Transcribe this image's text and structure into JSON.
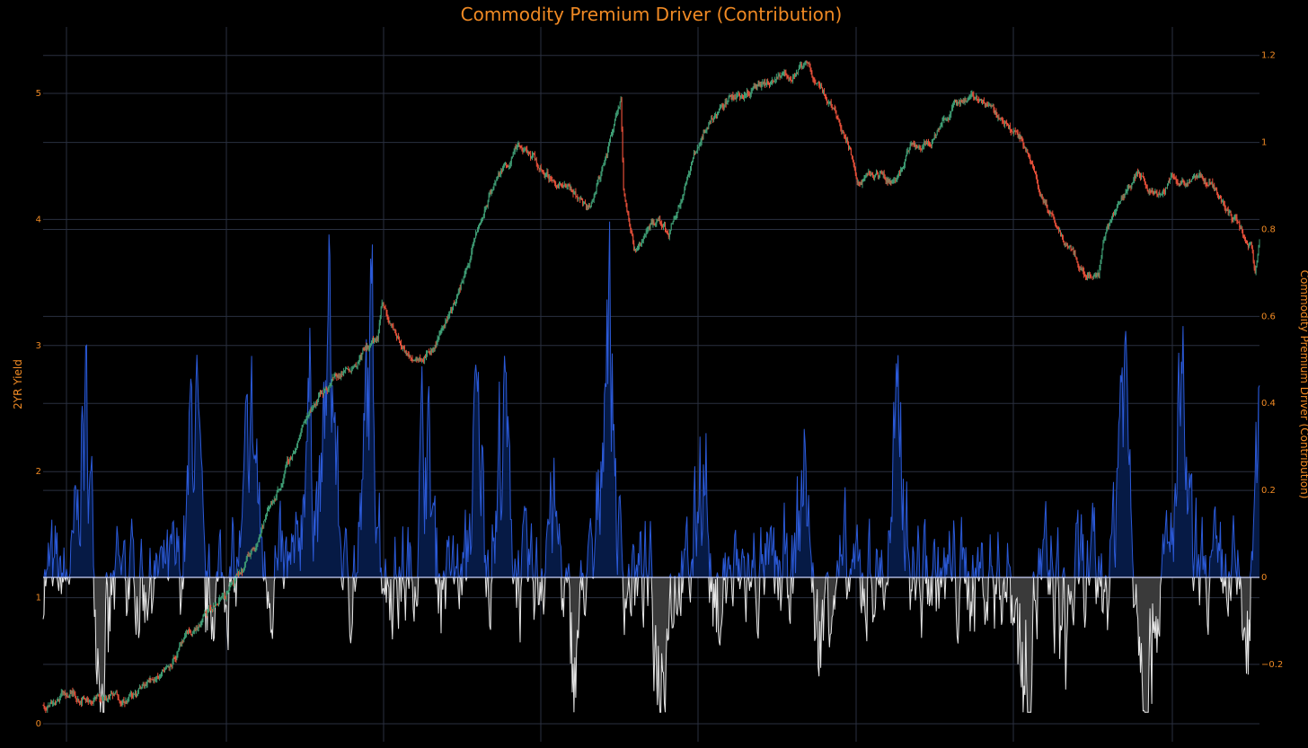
{
  "colors": {
    "background": "#000000",
    "grid": "#2a3040",
    "text": "#f08a24",
    "candle_up": "#3f9e75",
    "candle_down": "#e8503a",
    "positive_line": "#2b59d6",
    "positive_fill": "#061a45",
    "negative_line": "#e6e6e6",
    "negative_fill": "#3a3a3a",
    "zero_line": "#d0d8ff"
  },
  "chart_data": {
    "type": "candlestick+area",
    "title": "Commodity Premium Driver (Contribution)",
    "y_left": {
      "label": "2YR Yield",
      "range": [
        -0.05,
        5.55
      ],
      "ticks": [
        "0",
        "1",
        "2",
        "3",
        "4",
        "5"
      ]
    },
    "y_right": {
      "label": "Commodity Premium Driver (Contribution)",
      "range": [
        -0.335,
        1.26
      ],
      "ticks": [
        "−0.2",
        "0",
        "0.2",
        "0.4",
        "0.6",
        "0.8",
        "1",
        "1.2"
      ]
    },
    "grid": true,
    "legend": "none",
    "price_series_keypoints": [
      [
        0,
        0.15
      ],
      [
        25,
        0.24
      ],
      [
        60,
        0.2
      ],
      [
        105,
        0.22
      ],
      [
        140,
        0.45
      ],
      [
        170,
        0.7
      ],
      [
        200,
        0.95
      ],
      [
        230,
        1.2
      ],
      [
        260,
        1.7
      ],
      [
        285,
        2.1
      ],
      [
        310,
        2.55
      ],
      [
        335,
        2.75
      ],
      [
        355,
        2.85
      ],
      [
        375,
        3.0
      ],
      [
        385,
        3.05
      ],
      [
        390,
        3.3
      ],
      [
        420,
        2.9
      ],
      [
        450,
        3.0
      ],
      [
        480,
        3.45
      ],
      [
        500,
        3.9
      ],
      [
        520,
        4.3
      ],
      [
        545,
        4.55
      ],
      [
        560,
        4.5
      ],
      [
        580,
        4.35
      ],
      [
        600,
        4.25
      ],
      [
        630,
        4.1
      ],
      [
        650,
        4.55
      ],
      [
        665,
        5.0
      ],
      [
        668,
        4.3
      ],
      [
        680,
        3.75
      ],
      [
        700,
        4.0
      ],
      [
        720,
        3.9
      ],
      [
        740,
        4.3
      ],
      [
        760,
        4.7
      ],
      [
        780,
        4.9
      ],
      [
        800,
        5.0
      ],
      [
        830,
        5.05
      ],
      [
        860,
        5.15
      ],
      [
        880,
        5.2
      ],
      [
        900,
        5.0
      ],
      [
        920,
        4.75
      ],
      [
        940,
        4.3
      ],
      [
        960,
        4.35
      ],
      [
        980,
        4.3
      ],
      [
        1000,
        4.6
      ],
      [
        1020,
        4.65
      ],
      [
        1050,
        4.9
      ],
      [
        1070,
        5.0
      ],
      [
        1090,
        4.9
      ],
      [
        1110,
        4.75
      ],
      [
        1130,
        4.6
      ],
      [
        1150,
        4.2
      ],
      [
        1165,
        3.95
      ],
      [
        1185,
        3.75
      ],
      [
        1200,
        3.55
      ],
      [
        1215,
        3.6
      ],
      [
        1225,
        3.95
      ],
      [
        1240,
        4.15
      ],
      [
        1260,
        4.35
      ],
      [
        1280,
        4.2
      ],
      [
        1300,
        4.35
      ],
      [
        1320,
        4.3
      ],
      [
        1345,
        4.3
      ],
      [
        1360,
        4.1
      ],
      [
        1375,
        3.95
      ],
      [
        1390,
        3.8
      ],
      [
        1395,
        3.55
      ],
      [
        1400,
        3.8
      ]
    ],
    "contribution_peaks": [
      [
        48,
        0.48
      ],
      [
        175,
        0.56
      ],
      [
        240,
        0.46
      ],
      [
        305,
        0.57
      ],
      [
        330,
        0.7
      ],
      [
        377,
        0.67
      ],
      [
        440,
        0.44
      ],
      [
        500,
        0.44
      ],
      [
        530,
        0.47
      ],
      [
        585,
        0.2
      ],
      [
        650,
        0.85
      ],
      [
        760,
        0.45
      ],
      [
        878,
        0.36
      ],
      [
        985,
        0.43
      ],
      [
        1243,
        0.65
      ],
      [
        1310,
        0.47
      ],
      [
        1398,
        0.46
      ],
      [
        70,
        -0.3
      ],
      [
        185,
        -0.2
      ],
      [
        300,
        -0.06
      ],
      [
        610,
        -0.25
      ],
      [
        710,
        -0.25
      ],
      [
        770,
        -0.22
      ],
      [
        890,
        -0.26
      ],
      [
        1130,
        -0.3
      ],
      [
        1175,
        -0.16
      ],
      [
        1270,
        -0.26
      ],
      [
        1389,
        -0.3
      ]
    ]
  }
}
